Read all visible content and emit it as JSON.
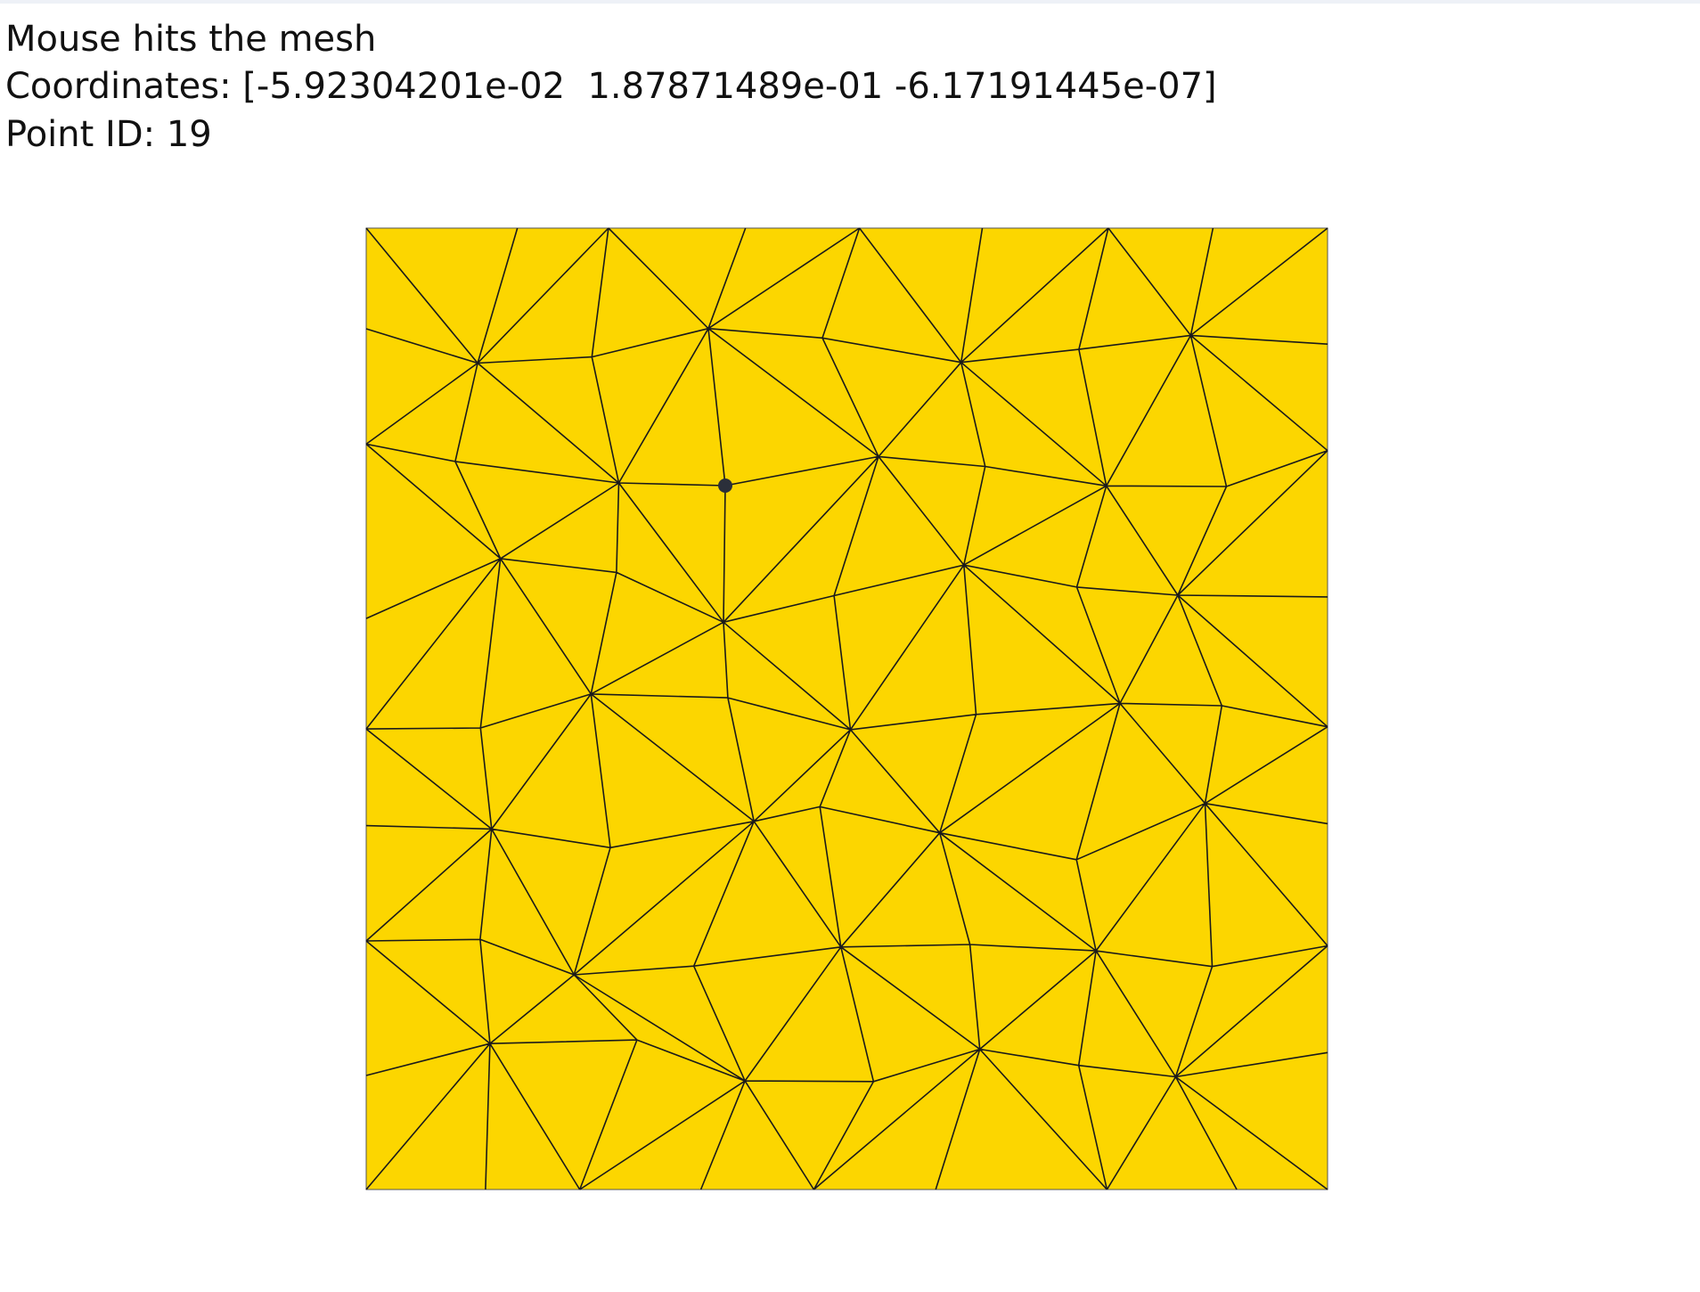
{
  "status": {
    "message": "Mouse hits the mesh",
    "coordinates": "Coordinates: [-5.92304201e-02  1.87871489e-01 -6.17191445e-07]",
    "point_id": "Point ID: 19"
  }
}
